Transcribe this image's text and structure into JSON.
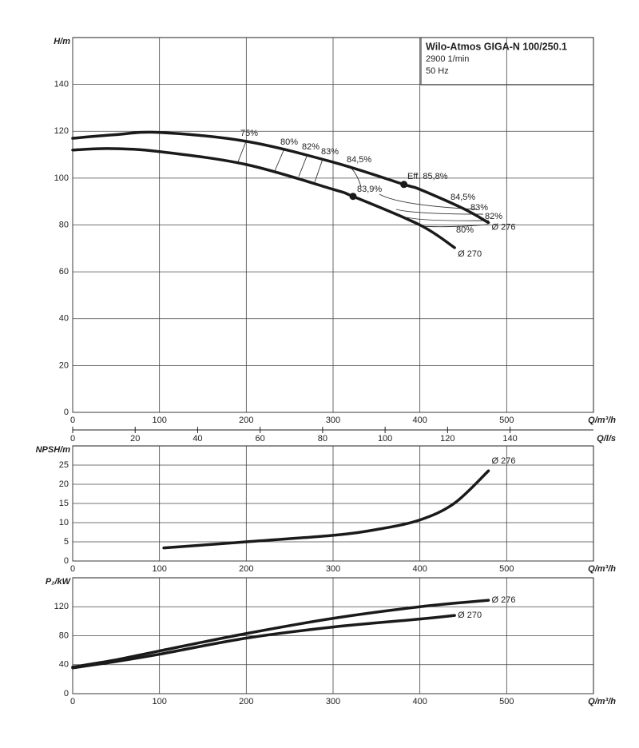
{
  "info": {
    "title": "Wilo-Atmos GIGA-N 100/250.1",
    "speed": "2900 1/min",
    "frequency": "50 Hz"
  },
  "chart_data": [
    {
      "type": "line",
      "ylabel": "H/m",
      "xlabel": "Q/m³/h",
      "xlim": [
        0,
        600
      ],
      "xticks": [
        0,
        100,
        200,
        300,
        400,
        500
      ],
      "ylim": [
        0,
        160
      ],
      "yticks": [
        0,
        20,
        40,
        60,
        80,
        100,
        120,
        140
      ],
      "grid": true,
      "x2label": "Q/l/s",
      "x2lim": [
        0,
        166.7
      ],
      "x2ticks": [
        0,
        20,
        40,
        60,
        80,
        100,
        120,
        140
      ],
      "series": [
        {
          "name": "Ø 276",
          "color": "#1a1a1a",
          "x": [
            0,
            48,
            100,
            200,
            300,
            381.6,
            400,
            450,
            479
          ],
          "values": [
            117,
            118.5,
            119.5,
            115.7,
            106.8,
            97.3,
            95.2,
            87,
            81
          ]
        },
        {
          "name": "Ø 270",
          "color": "#1a1a1a",
          "x": [
            0,
            45,
            100,
            200,
            300,
            323,
            400,
            440
          ],
          "values": [
            112,
            112.6,
            111.3,
            105.8,
            95.2,
            92.2,
            80,
            70.3
          ]
        }
      ],
      "points": {
        "x": [
          381.6,
          323
        ],
        "values": [
          97.3,
          92.2
        ]
      },
      "annotations": [
        "75%",
        "80%",
        "82%",
        "83%",
        "84,5%",
        "Eff. 85,8%",
        "83,9%",
        "84,5%",
        "83%",
        "82%",
        "80%"
      ]
    },
    {
      "type": "line",
      "ylabel": "NPSH/m",
      "xlabel": "Q/m³/h",
      "xlim": [
        0,
        600
      ],
      "xticks": [
        0,
        100,
        200,
        300,
        400,
        500
      ],
      "ylim": [
        0,
        30
      ],
      "yticks": [
        0,
        5,
        10,
        15,
        20,
        25
      ],
      "grid": true,
      "series": [
        {
          "name": "Ø 276",
          "color": "#1a1a1a",
          "x": [
            105,
            200,
            300,
            350,
            400,
            440,
            479
          ],
          "values": [
            3.4,
            5,
            6.7,
            8.2,
            10.7,
            15.1,
            23.5
          ]
        }
      ]
    },
    {
      "type": "line",
      "ylabel": "P₂/kW",
      "xlabel": "Q/m³/h",
      "xlim": [
        0,
        600
      ],
      "xticks": [
        0,
        100,
        200,
        300,
        400,
        500
      ],
      "ylim": [
        0,
        160
      ],
      "yticks": [
        0,
        40,
        80,
        120
      ],
      "grid": true,
      "series": [
        {
          "name": "Ø 276",
          "color": "#1a1a1a",
          "x": [
            0,
            50,
            100,
            200,
            300,
            400,
            479
          ],
          "values": [
            36.7,
            46.7,
            59,
            83,
            104,
            120,
            129
          ]
        },
        {
          "name": "Ø 270",
          "color": "#1a1a1a",
          "x": [
            0,
            50,
            100,
            200,
            300,
            400,
            440
          ],
          "values": [
            35.6,
            44.4,
            54.4,
            76.7,
            92,
            103,
            108
          ]
        }
      ]
    }
  ]
}
